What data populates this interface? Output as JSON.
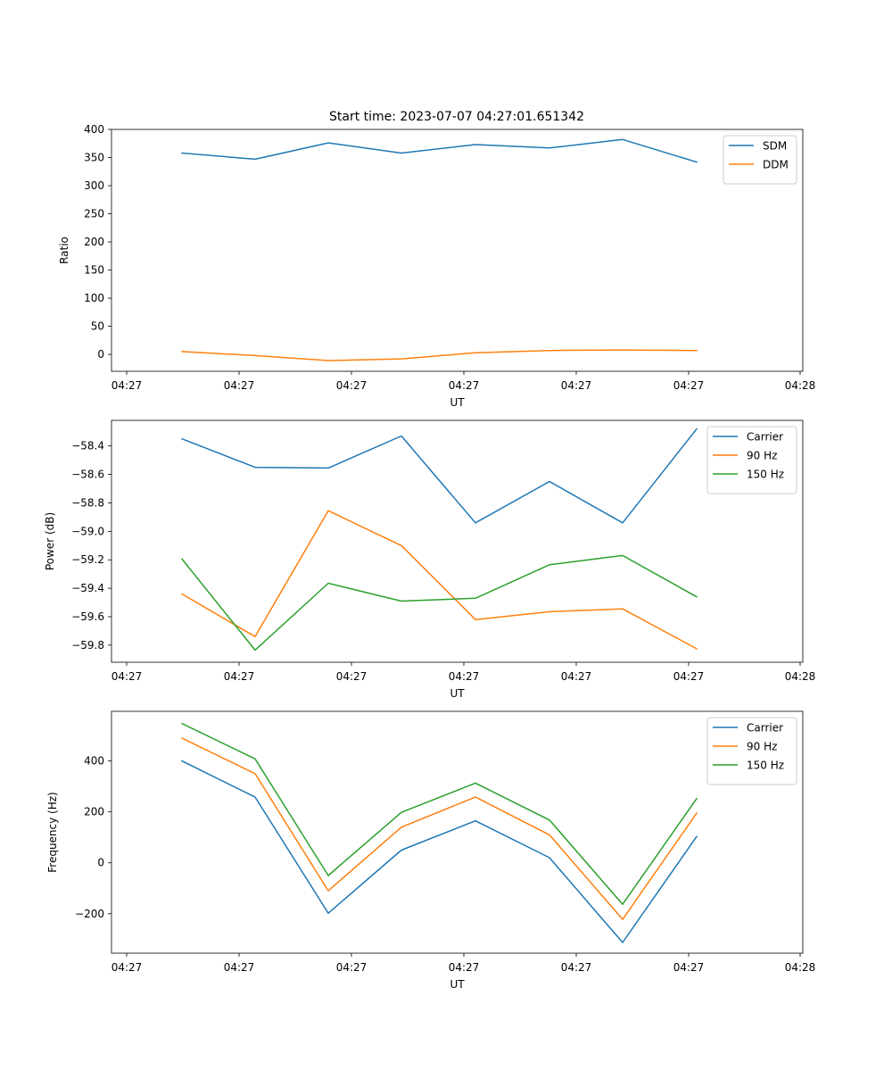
{
  "figure": {
    "title": "Start time: 2023-07-07 04:27:01.651342"
  },
  "chart_data": [
    {
      "type": "line",
      "title": "Start time: 2023-07-07 04:27:01.651342",
      "xlabel": "UT",
      "ylabel": "Ratio",
      "x_tick_labels": [
        "04:27",
        "04:27",
        "04:27",
        "04:27",
        "04:27",
        "04:27",
        "04:28"
      ],
      "y_ticks": [
        0,
        50,
        100,
        150,
        200,
        250,
        300,
        350,
        400
      ],
      "ylim": [
        -30,
        400
      ],
      "legend_position": "top-right",
      "x": [
        1,
        2,
        3,
        4,
        5,
        6,
        7,
        8
      ],
      "series": [
        {
          "name": "SDM",
          "color": "#1f77b4",
          "values": [
            358,
            347,
            376,
            358,
            373,
            367,
            382,
            342
          ]
        },
        {
          "name": "DDM",
          "color": "#ff7f0e",
          "values": [
            5,
            -2,
            -11,
            -8,
            3,
            7,
            8,
            7
          ]
        }
      ]
    },
    {
      "type": "line",
      "title": "",
      "xlabel": "UT",
      "ylabel": "Power (dB)",
      "x_tick_labels": [
        "04:27",
        "04:27",
        "04:27",
        "04:27",
        "04:27",
        "04:27",
        "04:28"
      ],
      "y_ticks": [
        -58.4,
        -58.6,
        -58.8,
        -59.0,
        -59.2,
        -59.4,
        -59.6,
        -59.8
      ],
      "y_tick_labels": [
        "−58.4",
        "−58.6",
        "−58.8",
        "−59.0",
        "−59.2",
        "−59.4",
        "−59.6",
        "−59.8"
      ],
      "ylim": [
        -59.92,
        -58.22
      ],
      "legend_position": "top-right",
      "x": [
        1,
        2,
        3,
        4,
        5,
        6,
        7,
        8
      ],
      "series": [
        {
          "name": "Carrier",
          "color": "#1f77b4",
          "values": [
            -58.35,
            -58.55,
            -58.555,
            -58.33,
            -58.94,
            -58.65,
            -58.94,
            -58.28
          ]
        },
        {
          "name": "90 Hz",
          "color": "#ff7f0e",
          "values": [
            -59.44,
            -59.74,
            -58.855,
            -59.1,
            -59.62,
            -59.565,
            -59.545,
            -59.825
          ]
        },
        {
          "name": "150 Hz",
          "color": "#2ca02c",
          "values": [
            -59.195,
            -59.835,
            -59.365,
            -59.49,
            -59.47,
            -59.235,
            -59.17,
            -59.46
          ]
        }
      ]
    },
    {
      "type": "line",
      "title": "",
      "xlabel": "UT",
      "ylabel": "Frequency (Hz)",
      "x_tick_labels": [
        "04:27",
        "04:27",
        "04:27",
        "04:27",
        "04:27",
        "04:27",
        "04:28"
      ],
      "y_ticks": [
        400,
        200,
        0,
        -200
      ],
      "y_tick_labels": [
        "400",
        "200",
        "0",
        "−200"
      ],
      "ylim": [
        -355,
        595
      ],
      "legend_position": "top-right",
      "x": [
        1,
        2,
        3,
        4,
        5,
        6,
        7,
        8
      ],
      "series": [
        {
          "name": "Carrier",
          "color": "#1f77b4",
          "values": [
            400,
            258,
            -198,
            50,
            165,
            20,
            -313,
            103
          ]
        },
        {
          "name": "90 Hz",
          "color": "#ff7f0e",
          "values": [
            490,
            350,
            -110,
            140,
            258,
            110,
            -222,
            195
          ]
        },
        {
          "name": "150 Hz",
          "color": "#2ca02c",
          "values": [
            547,
            408,
            -50,
            198,
            313,
            168,
            -163,
            252
          ]
        }
      ]
    }
  ]
}
